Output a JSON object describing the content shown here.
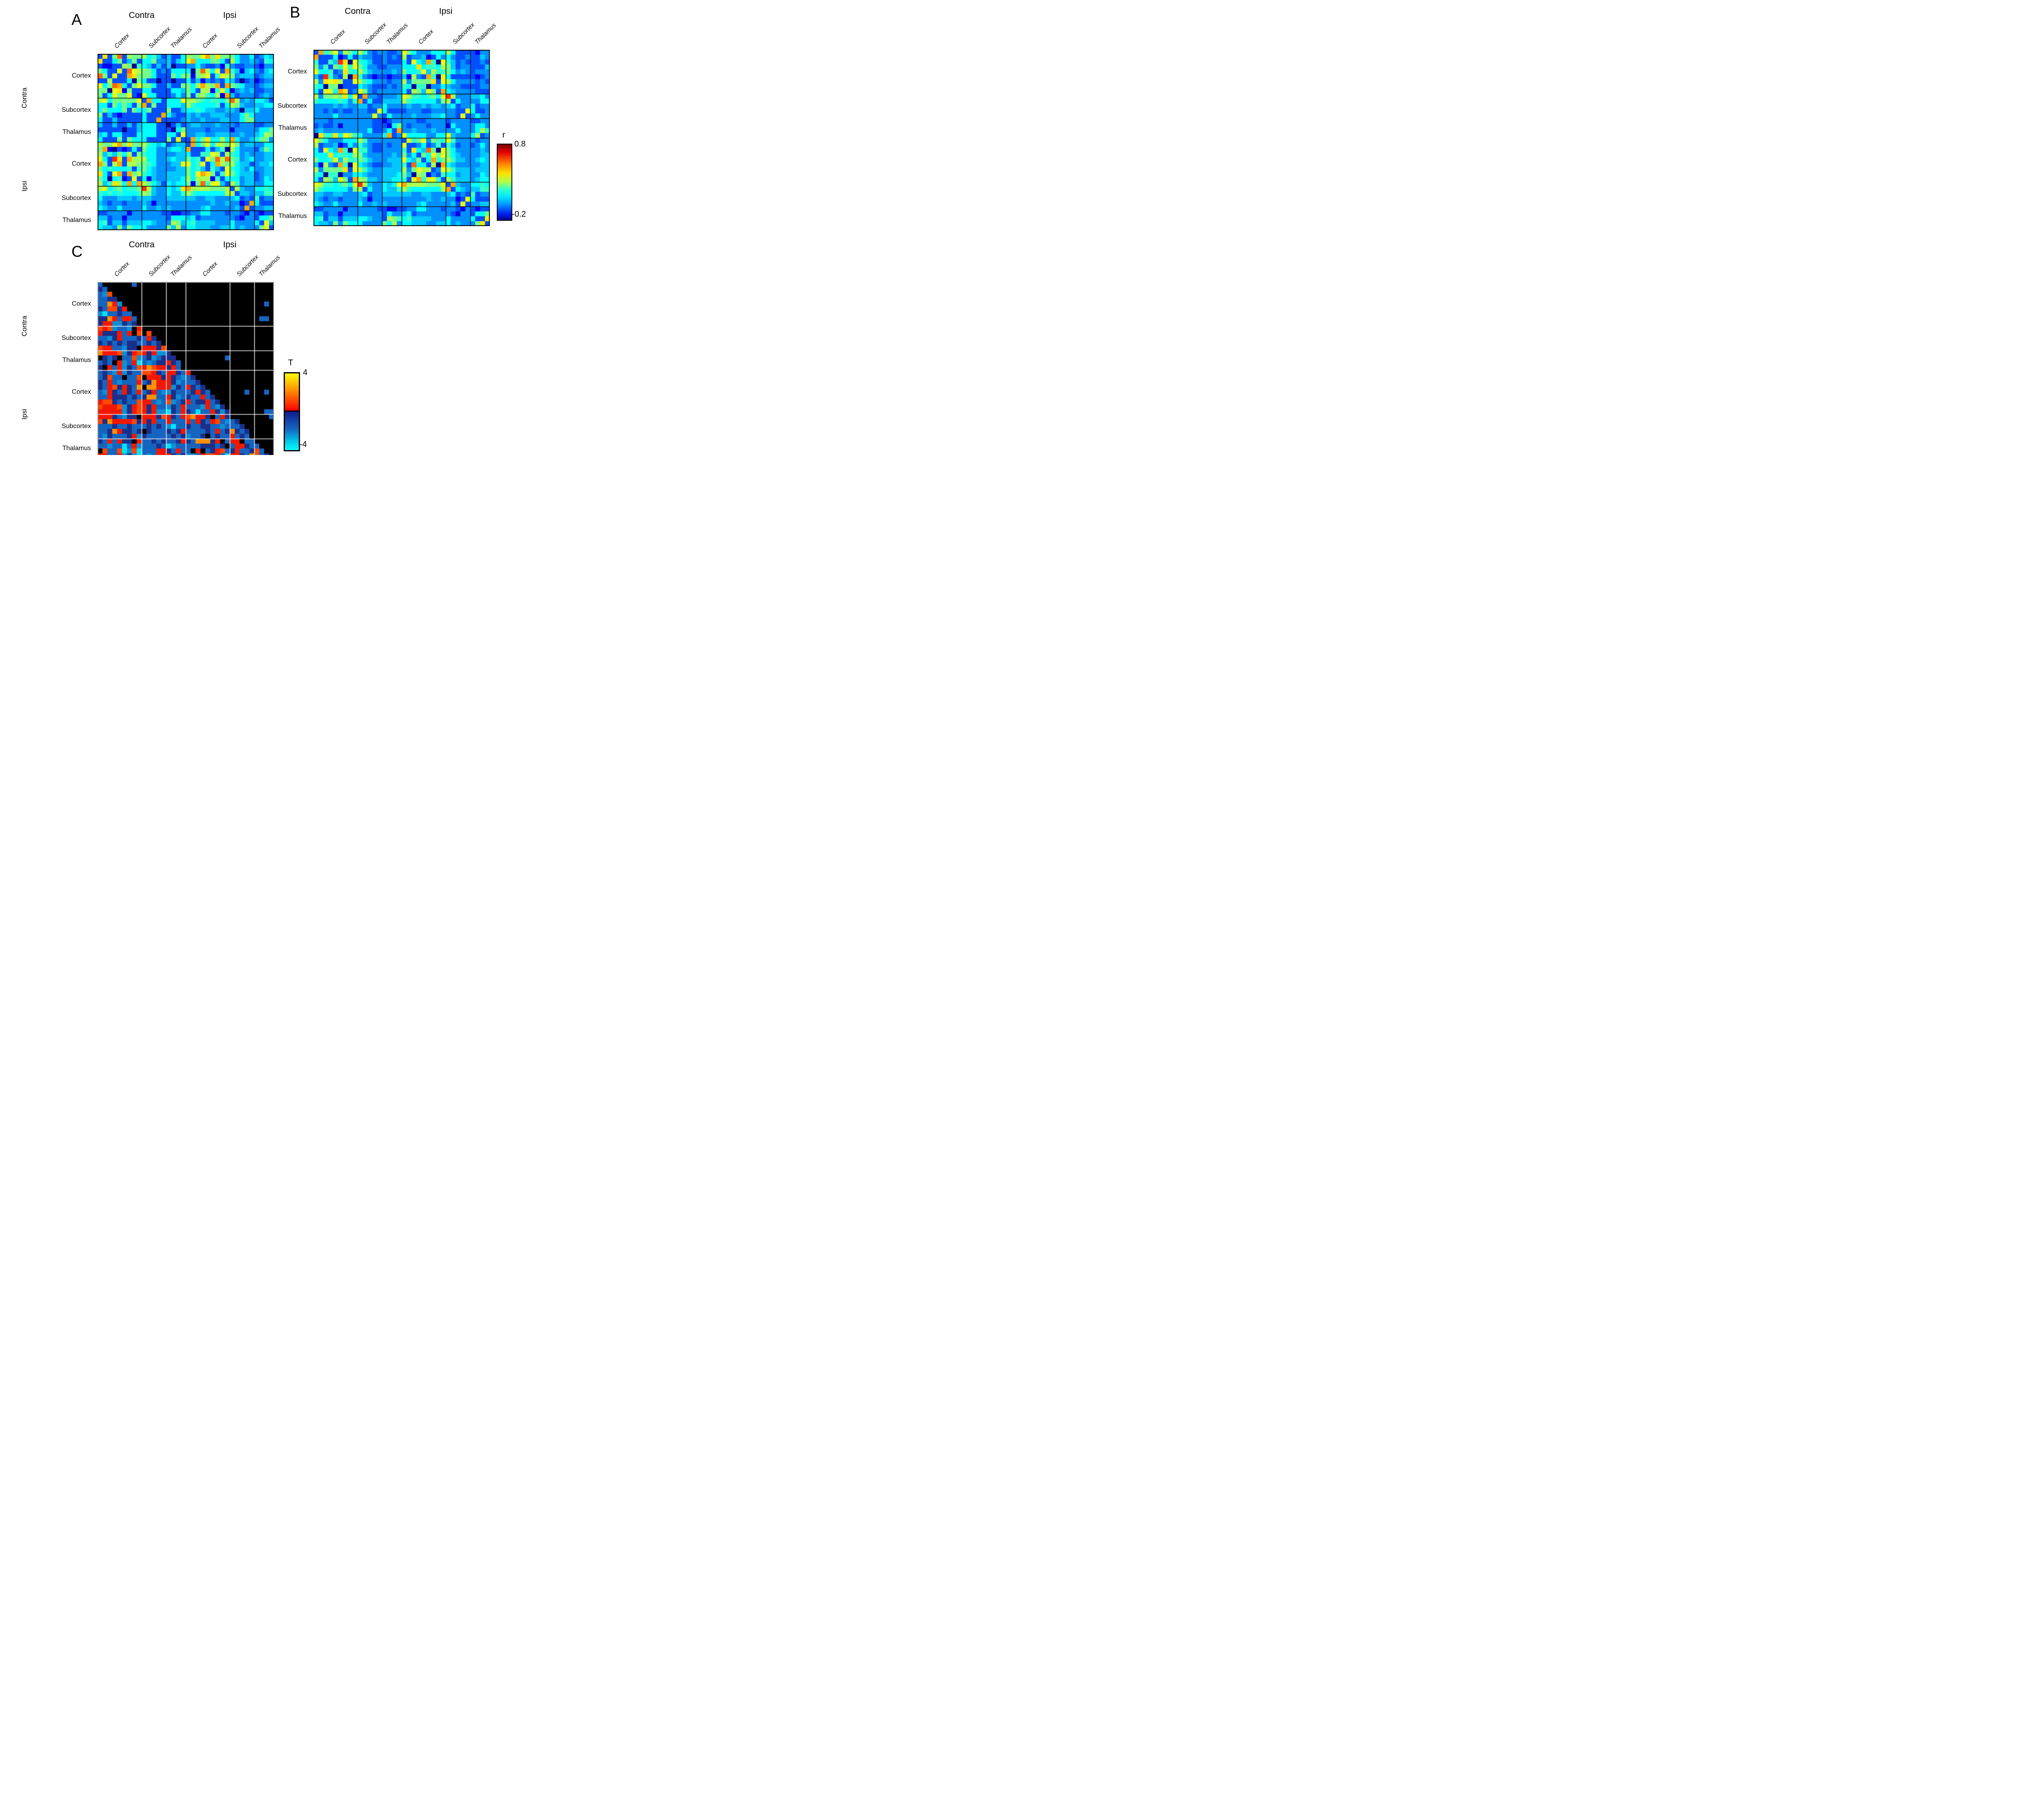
{
  "figure": {
    "background": "#ffffff"
  },
  "labels": {
    "contra": "Contra",
    "ipsi": "Ipsi",
    "regions": [
      "Cortex",
      "Subcortex",
      "Thalamus"
    ]
  },
  "panels": {
    "a": {
      "letter": "A"
    },
    "b": {
      "letter": "B"
    },
    "c": {
      "letter": "C"
    }
  },
  "colorbar_r": {
    "title": "r",
    "top_tick": "0.8",
    "bottom_tick": "-0.2"
  },
  "colorbar_t": {
    "title": "T",
    "top_tick": "4",
    "bottom_tick": "-4"
  },
  "chart_data": [
    {
      "id": "A",
      "type": "heatmap",
      "canvas": "heatmap-a",
      "value_label": "r",
      "vmin": -0.2,
      "vmax": 0.8,
      "colormap": "jet",
      "blocks": {
        "groups": [
          "Contra",
          "Ipsi"
        ],
        "regions": [
          "Cortex",
          "Subcortex",
          "Thalamus"
        ],
        "sizes": [
          9,
          5,
          4,
          9,
          5,
          4
        ]
      },
      "block_boundaries": [
        9,
        14,
        18,
        27,
        32
      ],
      "grid_color": "#000000",
      "border_color": "#000000",
      "background": "#ffffff",
      "palette": {
        "0": "#000090",
        "1": "#0000f0",
        "2": "#0050ff",
        "3": "#0090ff",
        "4": "#00c8ff",
        "5": "#00ffff",
        "6": "#36ffc8",
        "7": "#73ff8c",
        "8": "#aaff50",
        "9": "#e6ff19",
        "a": "#ffe400",
        "b": "#ffa700",
        "c": "#ff6800",
        "d": "#ff2a00",
        "e": "#e60000",
        "f": "#a00000"
      },
      "matrix": [
        "2a27c28778564242258779b7a77753352354",
        "a2257247255733424 59b555775285334 3265",
        "2112287065424240223353223163223 32133",
        "752292c98775232555507c8592b641453245",
        "c72922ba777522275771789269873444 2344",
        "2282225075220220225241323254202 31233",
        "957cb527977522 4227758b87b2b765332344",
        "7709a17225522225547528816951343 42233",
        "72597792195522235372786581b423332343",
        "8957777792b55255598876566 57c83435542",
        "552757527b272255548655556258743 34455",
        "5755572755722272245565443344304 45333",
        "7242122225222b532243433444333575 3333",
        "522422222522b2222343343334433577 3333",
        "42242242455522024234433343332333 2233",
        "2222202245552220573333233331333 33557",
        "45255222555522552933443344433433 4587",
        "522272755522227292 2b57a5585b53345773",
        "8779b7a77865452344 2b579588797344 3355",
        "7b102125275533455 4b2225246085333 2475",
        "84647582765533334452266982865343 3344",
        "952da2b888553345 44756297c8c763453344",
        "b728b2887765333449956925b87854423445",
        "75655562675433334475642642965435 3344",
        "a529b2b78654334444759ba726975444 2344",
        "75056129251433444585888162555344 2354",
        "846a85b5b87542545 5717c6994286344 3355",
        "895675667d8433545ab888877782843 35565",
        "65656555687433544686555555882443 4466",
        "53334443444333444444334433345232 6233",
        "432332333431333333 3333343343312b5222",
        "5433533335334343333334533 33342b23344",
        "22333313333332 21122335533323321 32122",
        "44233133333333255545233333332133 2557",
        "56244244455433387456444433353333 5294",
        "54437375553333748355444334453433 3792"
      ]
    },
    {
      "id": "B",
      "type": "heatmap",
      "canvas": "heatmap-b",
      "value_label": "r",
      "vmin": -0.2,
      "vmax": 0.8,
      "colormap": "jet",
      "blocks": {
        "groups": [
          "Contra",
          "Ipsi"
        ],
        "regions": [
          "Cortex",
          "Subcortex",
          "Thalamus"
        ],
        "sizes": [
          9,
          5,
          4,
          9,
          5,
          4
        ]
      },
      "block_boundaries": [
        9,
        14,
        18,
        27,
        32
      ],
      "grid_color": "#000000",
      "border_color": "#000000",
      "background": "#ffffff",
      "palette": {
        "0": "#000090",
        "1": "#0000f0",
        "2": "#0050ff",
        "3": "#0090ff",
        "4": "#00c8ff",
        "5": "#00ffff",
        "6": "#36ffc8",
        "7": "#73ff8c",
        "8": "#aaff50",
        "9": "#e6ff19",
        "a": "#ffe400",
        "b": "#ffa700",
        "c": "#ff6800",
        "d": "#ff2a00",
        "e": "#e60000",
        "f": "#a00000"
      },
      "matrix": [
        "2b6793875863233223975333555852222133",
        "b2225125243322323282334125353223 2243",
        "62264da09654223222 52954b609642322232",
        "73627696975332233 3555a566587423 32224",
        "955623a6586433334375569486675343 2333",
        "42d63280b632122122 41832b609522222123",
        "83a9a82298653332 33837777a298533 33232",
        "65077022254322232365066033543322 2233",
        "52995ba239732333 3352874972b543333222",
        "837787a592b3323334986656759d83334453",
        "655556536b252244448655555378253 33355",
        "33334343344233533334334344345233 5233",
        "33232322333229522223332233333229 5223",
        "33335333333393253333433344533292 3533",
        "33323333333322123333322333323333 2233",
        "23223133333322215732333233315333 3553",
        "34333333333522352b334333433335333586",
        "0a66a59865333 35b2395555335594333 5823",
        "97533355586333333329679376696333 3233",
        "82334125364322323392235236264233 2353",
        "52954b6096632233 3362a54c709753333343",
        "555a5665874333334373527597975433 3344",
        "75569486676433344495472 5b67864433454",
        "41832b6095432233 4462c55280b543333344",
        "837777a2986433444483798823986444 3444",
        "65066033554333444574087132655344 3354",
        "52874972b87443445 5629b6996286444 3455",
        "986656759d84335459b888877792b43 35565",
        "86555553782533544686555555 8b25434466",
        "44334433345233444444334433345232 6233",
        "43233233343133333333333433433129 5222",
        "54335333353343433333345333334292 3344",
        "22333313333332211223355333233213 2122",
        "44233133333333253345233333332133 2557",
        "56244244455433287656444433353333 522a",
        "5443737555333375 835544433445343337a2"
      ]
    },
    {
      "id": "C",
      "type": "heatmap-lower-triangular",
      "canvas": "heatmap-c",
      "value_label": "T",
      "vmin": -4,
      "vmax": 4,
      "significance_note": "black cells = not significant; red-to-yellow = positive T (threshold to 4); dark-blue-to-cyan = negative T (threshold to -4)",
      "blocks": {
        "groups": [
          "Contra",
          "Ipsi"
        ],
        "regions": [
          "Cortex",
          "Subcortex",
          "Thalamus"
        ],
        "sizes": [
          9,
          5,
          4,
          9,
          5,
          4
        ]
      },
      "block_boundaries": [
        9,
        14,
        18,
        27,
        32
      ],
      "grid_color": "#ffffff",
      "border_color": "#8c8c8c",
      "background": "#000000",
      "palette": {
        "k": "#000000",
        "d": "#1b2f8a",
        "b": "#1565c0",
        "t": "#0d8fd4",
        "c": "#00e5ff",
        "r": "#f21800",
        "o": "#ff4800",
        "O": "#ff9100"
      },
      "matrix": [
        "bkkkkkkbkkkkkkkkkkkkkkkkkkkkkkkkkkkk",
        "dbkkkkkkkkkkkkkkkkkkkkkkkkkkkkkkkkkk",
        "btokkkkkkkkkkkkkkkkkkkkkkkkkkkkkkkkk",
        "bbddkkkkkkkkkkkkkkkkkkkkkkkkkkkkkkkk",
        "bbOrtkkkkkkkkkkkkkkkkkkkkkkkkkkkkkbk",
        "dboodrkkkkkkkkkkkkkkkkkkkkkkkkkkkkkk",
        "tcbbdbbkkkkkkkkkkkkkkkkkkkkkkkkkkkkk",
        "ddOrbrrbkkkkkkkkkkkkkkkkkkkkkkkkkbbk",
        "drrttdbdkkkkkkkkkkkkkkkkkkkkkkkkkkkk",
        "orotbbtkrkkkkkkkkkkkkkkkkkkkkkkkkkkk",
        "rdddrbrkokokkkkkkkkkkkkkkkkkkkkkkkkk",
        "bbtdrbbbdbrdkkkkkkkkkkkkkkkkkkkkkkkk",
        "dbdbdbddbbdbdkkkkkkkkkkkkkkkkkkkkkkk",
        "orrbbtddkrrrdokkkkkkkkkkkkkkkkkkkkkk",
        "Orrrotdrordrttdkkkkkkkkkkkkkkkkkkkkk",
        "kdbdkbbotbdtbdddkkkkkkkkkkbkkkkkkkkk",
        "bdbkrtbrcbtbddrdbkkkkkkkkkkkkkkkkkkk",
        "dkrbrtdborOorrdrbkkkkkkkkkkkkkkkkkkk",
        "bdbtrtdbboordbrrdbrkkkkkkkkkkkkkkkkk",
        "bdobbkbbokrrrdrdbtbdkkkkkkkkkkkkkkkk",
        "dbrbtbbbrbdOrrrdtbbbdkkkkkkkkkkkkkkk",
        "dbrodrdbOkOOrrrtdbrdbdkkkkkkkkkkkkkk",
        "btrdbrdbrbdrbttdbbbdrdbkkkkkkkbkkkbk",
        "bbrdddbdbdOObbrdtbdbbrbdkkkkkkkkkkkk",
        "roodbdbborrbtbotbdrbddrbdkkkkkkkkkkk",
        "orrrotdrordrbbtdbrbbbtrbtdkkkkkkkkkk",
        "rrrrrtdrordrttcdbrdbcbbrdtdkkkkkkkbb",
        "rrrdbtddkrrrdordbroOrrdkbrdkkkkkkkkb",
        "odOrrrrodrdrbbrbbbrbrdbrobtbdkkkkkkk",
        "bbbdbbdbbbdbdbtcbbdbbddbbtbbbdkkkkkk",
        "bbdOrddbdkdbbbdbdrbbbbdbrbdOdbdkkkkk",
        "btdbbbdrtdbbbbbdbdtbbdkbdbbrbdbkkkkk",
        "dbrbrddkrbbdbdbbdrdbOOOdrkbrrkbbkkkk",
        "bbtbbcbrtbbbdbctbbbbbdddbdkbrrdbbkkk",
        "kobboctocbbbrrdbrbbkrkbdrobdrbbdobkk",
        "rrbbrtdtcbtbrrrdbdttbroorbcrrdbOobdk"
      ]
    }
  ]
}
